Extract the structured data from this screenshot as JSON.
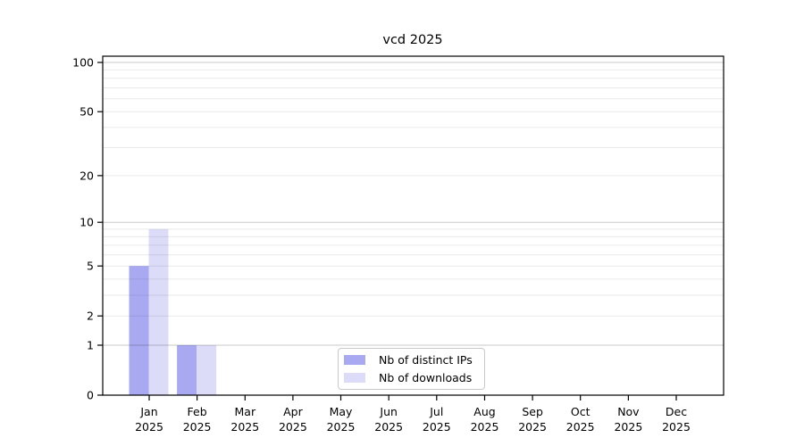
{
  "chart_data": {
    "type": "bar",
    "title": "vcd 2025",
    "x_year": "2025",
    "categories": [
      "Jan",
      "Feb",
      "Mar",
      "Apr",
      "May",
      "Jun",
      "Jul",
      "Aug",
      "Sep",
      "Oct",
      "Nov",
      "Dec"
    ],
    "series": [
      {
        "name": "Nb of distinct IPs",
        "color": "#a9a9f2",
        "values": [
          5,
          1,
          0,
          0,
          0,
          0,
          0,
          0,
          0,
          0,
          0,
          0
        ]
      },
      {
        "name": "Nb of downloads",
        "color": "#dcdcf8",
        "values": [
          9,
          1,
          0,
          0,
          0,
          0,
          0,
          0,
          0,
          0,
          0,
          0
        ]
      }
    ],
    "yscale": "log10(1+x)",
    "ylim": [
      0,
      110
    ],
    "ytick_values": [
      0,
      1,
      2,
      5,
      10,
      20,
      50,
      100
    ],
    "grid_major_values": [
      1,
      10,
      100
    ],
    "grid_minor_values": [
      2,
      3,
      4,
      5,
      6,
      7,
      8,
      9,
      20,
      30,
      40,
      50,
      60,
      70,
      80,
      90
    ],
    "grid": true,
    "legend_position": "bottom-center",
    "colors": {
      "background": "#ffffff",
      "axis": "#000000",
      "text": "#000000",
      "grid_major": "#cccccc",
      "grid_minor": "#e9e9e9",
      "legend_border": "#c9c9c9"
    }
  }
}
